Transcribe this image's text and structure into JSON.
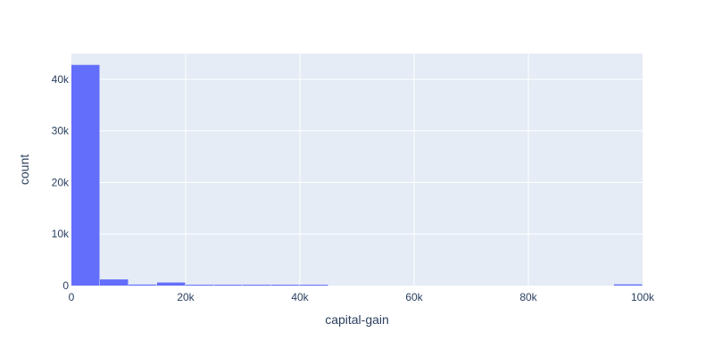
{
  "chart_data": {
    "type": "bar",
    "title": "",
    "xlabel": "capital-gain",
    "ylabel": "count",
    "xlim": [
      0,
      100000
    ],
    "ylim": [
      0,
      45000
    ],
    "grid": true,
    "bins": [
      {
        "x0": 0,
        "x1": 5000,
        "count": 42800
      },
      {
        "x0": 5000,
        "x1": 10000,
        "count": 1200
      },
      {
        "x0": 10000,
        "x1": 15000,
        "count": 200
      },
      {
        "x0": 15000,
        "x1": 20000,
        "count": 600
      },
      {
        "x0": 20000,
        "x1": 25000,
        "count": 30
      },
      {
        "x0": 25000,
        "x1": 30000,
        "count": 20
      },
      {
        "x0": 30000,
        "x1": 35000,
        "count": 10
      },
      {
        "x0": 35000,
        "x1": 40000,
        "count": 5
      },
      {
        "x0": 40000,
        "x1": 45000,
        "count": 5
      },
      {
        "x0": 95000,
        "x1": 100000,
        "count": 240
      }
    ],
    "x_ticks": [
      {
        "value": 0,
        "label": "0"
      },
      {
        "value": 20000,
        "label": "20k"
      },
      {
        "value": 40000,
        "label": "40k"
      },
      {
        "value": 60000,
        "label": "60k"
      },
      {
        "value": 80000,
        "label": "80k"
      },
      {
        "value": 100000,
        "label": "100k"
      }
    ],
    "y_ticks": [
      {
        "value": 0,
        "label": "0"
      },
      {
        "value": 10000,
        "label": "10k"
      },
      {
        "value": 20000,
        "label": "20k"
      },
      {
        "value": 30000,
        "label": "30k"
      },
      {
        "value": 40000,
        "label": "40k"
      }
    ],
    "colors": {
      "bar": "#636efa",
      "plot_background": "#e5ecf6",
      "gridline": "#ffffff",
      "text": "#2a3f5f"
    }
  }
}
